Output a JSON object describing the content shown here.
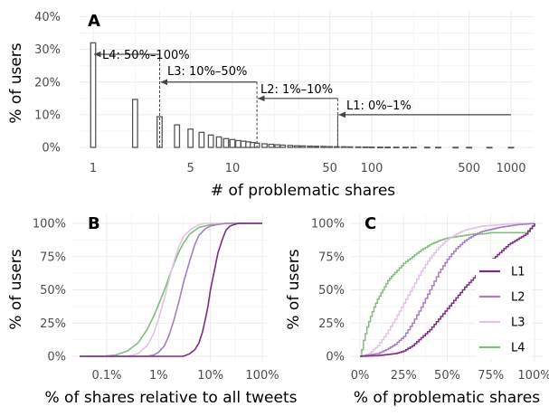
{
  "colors": {
    "bar_edge": "#555555",
    "annotation": "#444444",
    "L1": "#7b2c83",
    "L2": "#a57fbd",
    "L3": "#e3c3e3",
    "L4": "#7fbf7b"
  },
  "chart_data": [
    {
      "panel": "A",
      "type": "bar",
      "xscale": "log",
      "xlabel": "# of problematic shares",
      "ylabel": "% of users",
      "xticks": [
        1,
        5,
        10,
        50,
        100,
        500,
        1000
      ],
      "xtick_labels": [
        "1",
        "5",
        "10",
        "50",
        "100",
        "500",
        "1000"
      ],
      "yticks": [
        0,
        10,
        20,
        30,
        40
      ],
      "ytick_labels": [
        "0%",
        "10%",
        "20%",
        "30%",
        "40%"
      ],
      "ylim": [
        0,
        40
      ],
      "x": [
        1,
        2,
        3,
        4,
        5,
        6,
        7,
        8,
        9,
        10,
        11,
        12,
        13,
        14,
        15,
        17,
        19,
        21,
        23,
        26,
        29,
        32,
        36,
        40,
        45,
        50,
        56,
        63,
        70,
        80,
        90,
        100,
        115,
        130,
        150,
        175,
        200,
        250,
        300,
        400,
        500,
        700,
        1000
      ],
      "values": [
        32,
        14.7,
        9.4,
        6.9,
        5.6,
        4.6,
        3.8,
        3.2,
        2.7,
        2.4,
        2.1,
        1.9,
        1.7,
        1.5,
        1.3,
        1.1,
        0.95,
        0.8,
        0.7,
        0.6,
        0.5,
        0.45,
        0.4,
        0.35,
        0.3,
        0.25,
        0.22,
        0.19,
        0.16,
        0.14,
        0.12,
        0.1,
        0.08,
        0.07,
        0.06,
        0.05,
        0.04,
        0.03,
        0.03,
        0.02,
        0.02,
        0.01,
        0.01
      ],
      "annotations": [
        {
          "label": "L4: 50%–100%",
          "x_start": 3,
          "x_end": 1,
          "y": 28.5,
          "guide_x": 3
        },
        {
          "label": "L3: 10%–50%",
          "x_start": 15,
          "x_end": 3,
          "y": 20,
          "guide_x": 15
        },
        {
          "label": "L2: 1%–10%",
          "x_start": 57,
          "x_end": 15,
          "y": 15,
          "guide_x": 57
        },
        {
          "label": "L1: 0%–1%",
          "x_start": 1000,
          "x_end": 57,
          "y": 10,
          "guide_x": 57
        }
      ]
    },
    {
      "panel": "B",
      "type": "line",
      "subtype": "cumulative-distribution",
      "xscale": "log",
      "xlabel": "% of shares relative to all tweets",
      "ylabel": "% of users",
      "xticks": [
        0.1,
        1,
        10,
        100
      ],
      "xtick_labels": [
        "0.1%",
        "1%",
        "10%",
        "100%"
      ],
      "yticks": [
        0,
        25,
        50,
        75,
        100
      ],
      "ytick_labels": [
        "0%",
        "25%",
        "50%",
        "75%",
        "100%"
      ],
      "ylim": [
        0,
        100
      ],
      "series": [
        {
          "name": "L1",
          "x": [
            0.03,
            3,
            4,
            5,
            6,
            7,
            8,
            9,
            10,
            12,
            14,
            17,
            20,
            24,
            28,
            35,
            50,
            100
          ],
          "y": [
            0,
            0,
            2,
            5,
            10,
            18,
            28,
            38,
            50,
            65,
            78,
            88,
            95,
            98,
            99,
            100,
            100,
            100
          ]
        },
        {
          "name": "L2",
          "x": [
            0.03,
            0.6,
            0.8,
            1,
            1.3,
            1.6,
            2,
            2.5,
            3,
            4,
            5,
            6,
            8,
            10,
            13,
            20,
            100
          ],
          "y": [
            0,
            0,
            1,
            3,
            8,
            16,
            28,
            42,
            55,
            72,
            84,
            91,
            96,
            98,
            99,
            100,
            100
          ]
        },
        {
          "name": "L3",
          "x": [
            0.03,
            0.25,
            0.4,
            0.6,
            0.8,
            1,
            1.3,
            1.6,
            2,
            2.5,
            3,
            4,
            6,
            8,
            15,
            100
          ],
          "y": [
            0,
            0,
            2,
            8,
            17,
            28,
            44,
            58,
            72,
            83,
            90,
            95,
            99,
            100,
            100,
            100
          ]
        },
        {
          "name": "L4",
          "x": [
            0.03,
            0.08,
            0.15,
            0.25,
            0.4,
            0.6,
            0.8,
            1,
            1.3,
            1.6,
            2,
            2.5,
            3,
            4,
            6,
            10,
            20,
            100
          ],
          "y": [
            0,
            0,
            1,
            4,
            10,
            20,
            30,
            39,
            50,
            60,
            70,
            79,
            85,
            92,
            97,
            99,
            100,
            100
          ]
        }
      ]
    },
    {
      "panel": "C",
      "type": "line",
      "subtype": "cumulative-distribution",
      "xlabel": "% of problematic shares",
      "ylabel": "% of users",
      "xticks": [
        0,
        25,
        50,
        75,
        100
      ],
      "xtick_labels": [
        "0%",
        "25%",
        "50%",
        "75%",
        "100%"
      ],
      "yticks": [
        0,
        25,
        50,
        75,
        100
      ],
      "ytick_labels": [
        "0%",
        "25%",
        "50%",
        "75%",
        "100%"
      ],
      "xlim": [
        0,
        100
      ],
      "ylim": [
        0,
        100
      ],
      "legend": "right",
      "series": [
        {
          "name": "L1",
          "x": [
            0,
            10,
            20,
            25,
            30,
            35,
            40,
            45,
            50,
            55,
            60,
            65,
            70,
            75,
            80,
            85,
            90,
            95,
            100
          ],
          "y": [
            0,
            0.5,
            2,
            4,
            8,
            14,
            20,
            28,
            36,
            44,
            52,
            59,
            66,
            72,
            78,
            84,
            88,
            92,
            100
          ]
        },
        {
          "name": "L2",
          "x": [
            0,
            10,
            15,
            20,
            25,
            30,
            35,
            40,
            45,
            50,
            55,
            60,
            65,
            70,
            80,
            90,
            100
          ],
          "y": [
            0,
            2,
            5,
            9,
            15,
            25,
            37,
            50,
            63,
            73,
            81,
            87,
            91,
            94,
            97,
            99,
            100
          ]
        },
        {
          "name": "L3",
          "x": [
            0,
            5,
            10,
            15,
            20,
            25,
            30,
            35,
            40,
            45,
            50,
            55,
            60,
            70,
            80,
            90,
            100
          ],
          "y": [
            0,
            2,
            8,
            17,
            28,
            40,
            52,
            64,
            74,
            82,
            88,
            92,
            95,
            98,
            99,
            100,
            100
          ]
        },
        {
          "name": "L4",
          "x": [
            0,
            1,
            2,
            4,
            6,
            8,
            10,
            13,
            16,
            20,
            25,
            30,
            35,
            40,
            45,
            50,
            55,
            60,
            65,
            70,
            75,
            80,
            85,
            90,
            95,
            100
          ],
          "y": [
            0,
            5,
            12,
            22,
            30,
            37,
            43,
            50,
            57,
            63,
            70,
            75,
            80,
            84,
            87,
            89,
            90,
            91,
            92,
            92,
            93,
            93,
            93,
            93,
            93,
            100
          ]
        }
      ]
    }
  ]
}
